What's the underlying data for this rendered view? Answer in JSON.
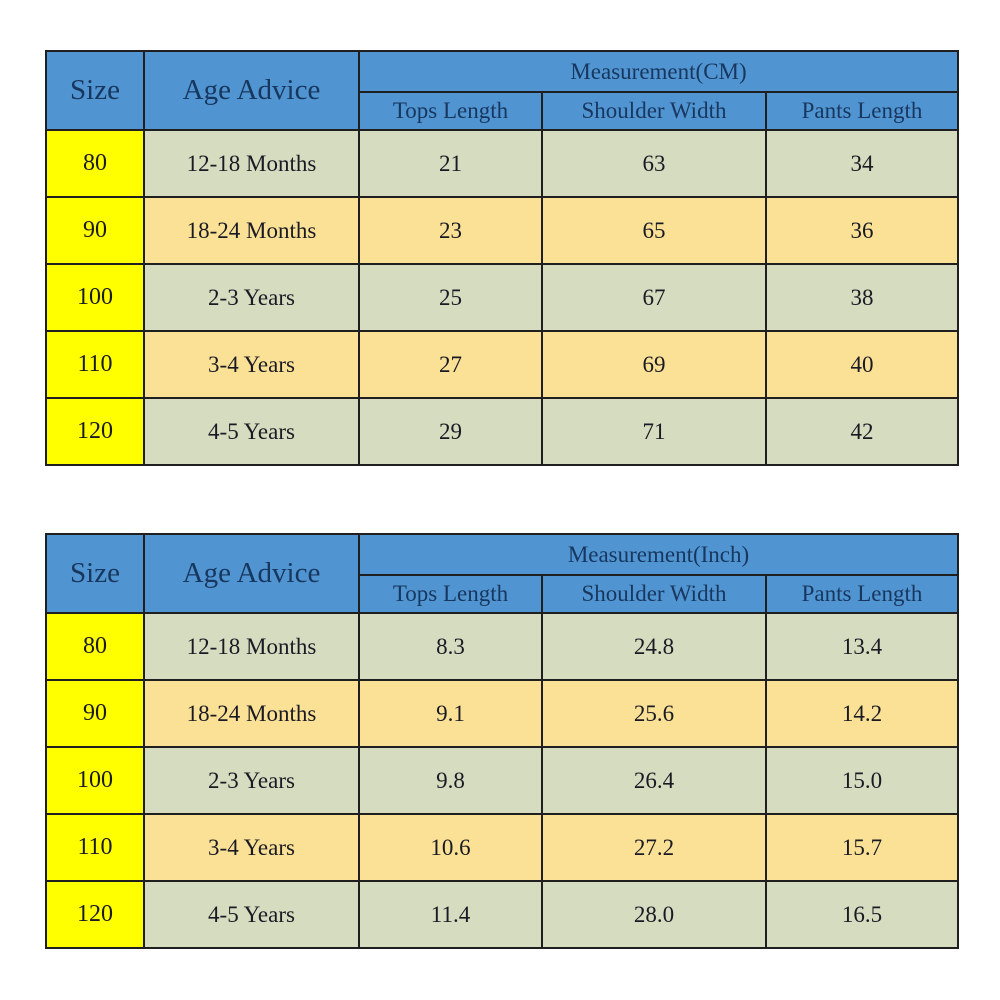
{
  "page": {
    "background": "#ffffff"
  },
  "colors": {
    "header_blue": "#5094d2",
    "header_text_navy": "#17375e",
    "size_column_yellow": "#ffff00",
    "row_green": "#d5dcbf",
    "row_gold": "#fbe195",
    "grid_line": "#1f1f1f",
    "data_text": "#1a1a24"
  },
  "tables": [
    {
      "title": "Measurement(CM)",
      "size_header": "Size",
      "age_header": "Age Advice",
      "sub_headers": [
        "Tops Length",
        "Shoulder Width",
        "Pants Length"
      ],
      "rows": [
        {
          "size": "80",
          "age": "12-18 Months",
          "tops": "21",
          "shoulder": "63",
          "pants": "34"
        },
        {
          "size": "90",
          "age": "18-24 Months",
          "tops": "23",
          "shoulder": "65",
          "pants": "36"
        },
        {
          "size": "100",
          "age": "2-3 Years",
          "tops": "25",
          "shoulder": "67",
          "pants": "38"
        },
        {
          "size": "110",
          "age": "3-4 Years",
          "tops": "27",
          "shoulder": "69",
          "pants": "40"
        },
        {
          "size": "120",
          "age": "4-5 Years",
          "tops": "29",
          "shoulder": "71",
          "pants": "42"
        }
      ]
    },
    {
      "title": "Measurement(Inch)",
      "size_header": "Size",
      "age_header": "Age Advice",
      "sub_headers": [
        "Tops Length",
        "Shoulder Width",
        "Pants Length"
      ],
      "rows": [
        {
          "size": "80",
          "age": "12-18 Months",
          "tops": "8.3",
          "shoulder": "24.8",
          "pants": "13.4"
        },
        {
          "size": "90",
          "age": "18-24 Months",
          "tops": "9.1",
          "shoulder": "25.6",
          "pants": "14.2"
        },
        {
          "size": "100",
          "age": "2-3 Years",
          "tops": "9.8",
          "shoulder": "26.4",
          "pants": "15.0"
        },
        {
          "size": "110",
          "age": "3-4 Years",
          "tops": "10.6",
          "shoulder": "27.2",
          "pants": "15.7"
        },
        {
          "size": "120",
          "age": "4-5 Years",
          "tops": "11.4",
          "shoulder": "28.0",
          "pants": "16.5"
        }
      ]
    }
  ]
}
